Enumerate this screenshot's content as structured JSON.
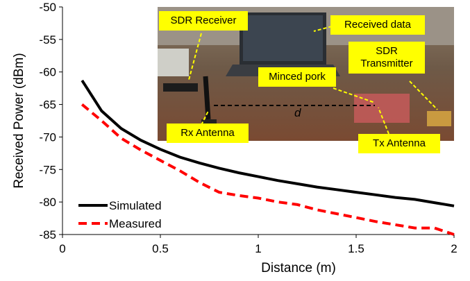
{
  "chart_data": {
    "type": "line",
    "x_label": "Distance (m)",
    "y_label": "Received Power (dBm)",
    "x": [
      0.1,
      0.2,
      0.3,
      0.4,
      0.5,
      0.6,
      0.7,
      0.8,
      0.9,
      1.0,
      1.1,
      1.2,
      1.3,
      1.4,
      1.5,
      1.6,
      1.7,
      1.8,
      1.9,
      2.0
    ],
    "series": [
      {
        "name": "Simulated",
        "color": "#000000",
        "dash": false,
        "values": [
          -61.3,
          -66,
          -68.7,
          -70.5,
          -71.9,
          -73.1,
          -74,
          -74.8,
          -75.5,
          -76.1,
          -76.7,
          -77.2,
          -77.7,
          -78.1,
          -78.5,
          -78.9,
          -79.3,
          -79.6,
          -80.1,
          -80.6
        ]
      },
      {
        "name": "Measured",
        "color": "#ff0000",
        "dash": true,
        "values": [
          -65,
          -67.5,
          -70.2,
          -72,
          -73.6,
          -75.2,
          -77,
          -78.5,
          -79,
          -79.4,
          -80,
          -80.4,
          -81.2,
          -81.8,
          -82.4,
          -83,
          -83.5,
          -84,
          -84,
          -85
        ]
      }
    ],
    "xlim": [
      0,
      2
    ],
    "xticks": [
      0,
      0.5,
      1,
      1.5,
      2
    ],
    "ylim": [
      -85,
      -50
    ],
    "yticks": [
      -50,
      -55,
      -60,
      -65,
      -70,
      -75,
      -80,
      -85
    ],
    "legend": "lower left",
    "annotations": [
      {
        "text": "SDR Receiver"
      },
      {
        "text": "Received data"
      },
      {
        "text": "SDR Transmitter"
      },
      {
        "text": "Minced pork"
      },
      {
        "text": "Rx Antenna"
      },
      {
        "text": "Tx Antenna"
      },
      {
        "text": "d"
      }
    ]
  }
}
